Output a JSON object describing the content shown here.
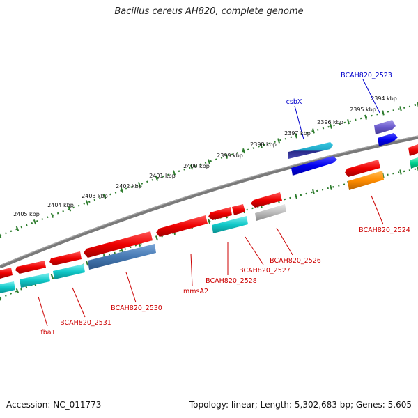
{
  "title": "Bacillus cereus AH820, complete genome",
  "footer": {
    "accession": "Accession: NC_011773",
    "summary": "Topology: linear; Length: 5,302,683 bp; Genes: 5,605"
  },
  "colors": {
    "backbone": "#7a7a7a",
    "ruler": "#2e7d2e",
    "forward_label": "#0000cc",
    "reverse_label": "#cc0000"
  },
  "ruler": {
    "unit": "kbp",
    "ticks": [
      {
        "label": "2394 kbp"
      },
      {
        "label": "2395 kbp"
      },
      {
        "label": "2396 kbp"
      },
      {
        "label": "2397 kbp"
      },
      {
        "label": "2398 kbp"
      },
      {
        "label": "2399 kbp"
      },
      {
        "label": "2400 kbp"
      },
      {
        "label": "2401 kbp"
      },
      {
        "label": "2402 kbp"
      },
      {
        "label": "2403 kbp"
      },
      {
        "label": "2404 kbp"
      },
      {
        "label": "2405 kbp"
      }
    ]
  },
  "gene_labels": [
    {
      "name": "BCAH820_2523",
      "strand": "forward"
    },
    {
      "name": "csbX",
      "strand": "forward"
    },
    {
      "name": "BCAH820_2524",
      "strand": "reverse"
    },
    {
      "name": "BCAH820_2526",
      "strand": "reverse"
    },
    {
      "name": "BCAH820_2527",
      "strand": "reverse"
    },
    {
      "name": "BCAH820_2528",
      "strand": "reverse"
    },
    {
      "name": "mmsA2",
      "strand": "reverse"
    },
    {
      "name": "BCAH820_2530",
      "strand": "reverse"
    },
    {
      "name": "BCAH820_2531",
      "strand": "reverse"
    },
    {
      "name": "fba1",
      "strand": "reverse"
    }
  ]
}
